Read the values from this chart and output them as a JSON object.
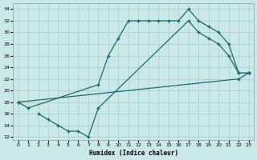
{
  "xlabel": "Humidex (Indice chaleur)",
  "bg_color": "#cbe8e8",
  "grid_color": "#a8cccc",
  "line_color": "#1a6b6b",
  "xlim": [
    -0.5,
    23.5
  ],
  "ylim": [
    11.5,
    35
  ],
  "yticks": [
    12,
    14,
    16,
    18,
    20,
    22,
    24,
    26,
    28,
    30,
    32,
    34
  ],
  "xticks": [
    0,
    1,
    2,
    3,
    4,
    5,
    6,
    7,
    8,
    9,
    10,
    11,
    12,
    13,
    14,
    15,
    16,
    17,
    18,
    19,
    20,
    21,
    22,
    23
  ],
  "line1_x": [
    0,
    1,
    8,
    9,
    10,
    11,
    12,
    13,
    14,
    15,
    16,
    17,
    18,
    19,
    20,
    21,
    22,
    23
  ],
  "line1_y": [
    18,
    17,
    21,
    26,
    29,
    32,
    32,
    32,
    32,
    32,
    32,
    34,
    32,
    31,
    30,
    28,
    23,
    23
  ],
  "line2_x": [
    0,
    22,
    23
  ],
  "line2_y": [
    18,
    22,
    23
  ],
  "line3_x": [
    2,
    3,
    4,
    5,
    6,
    7,
    8,
    17,
    18,
    19,
    20,
    21,
    22,
    23
  ],
  "line3_y": [
    16,
    15,
    14,
    13,
    13,
    12,
    17,
    32,
    30,
    29,
    28,
    26,
    23,
    23
  ],
  "figw": 3.2,
  "figh": 2.0,
  "dpi": 100
}
